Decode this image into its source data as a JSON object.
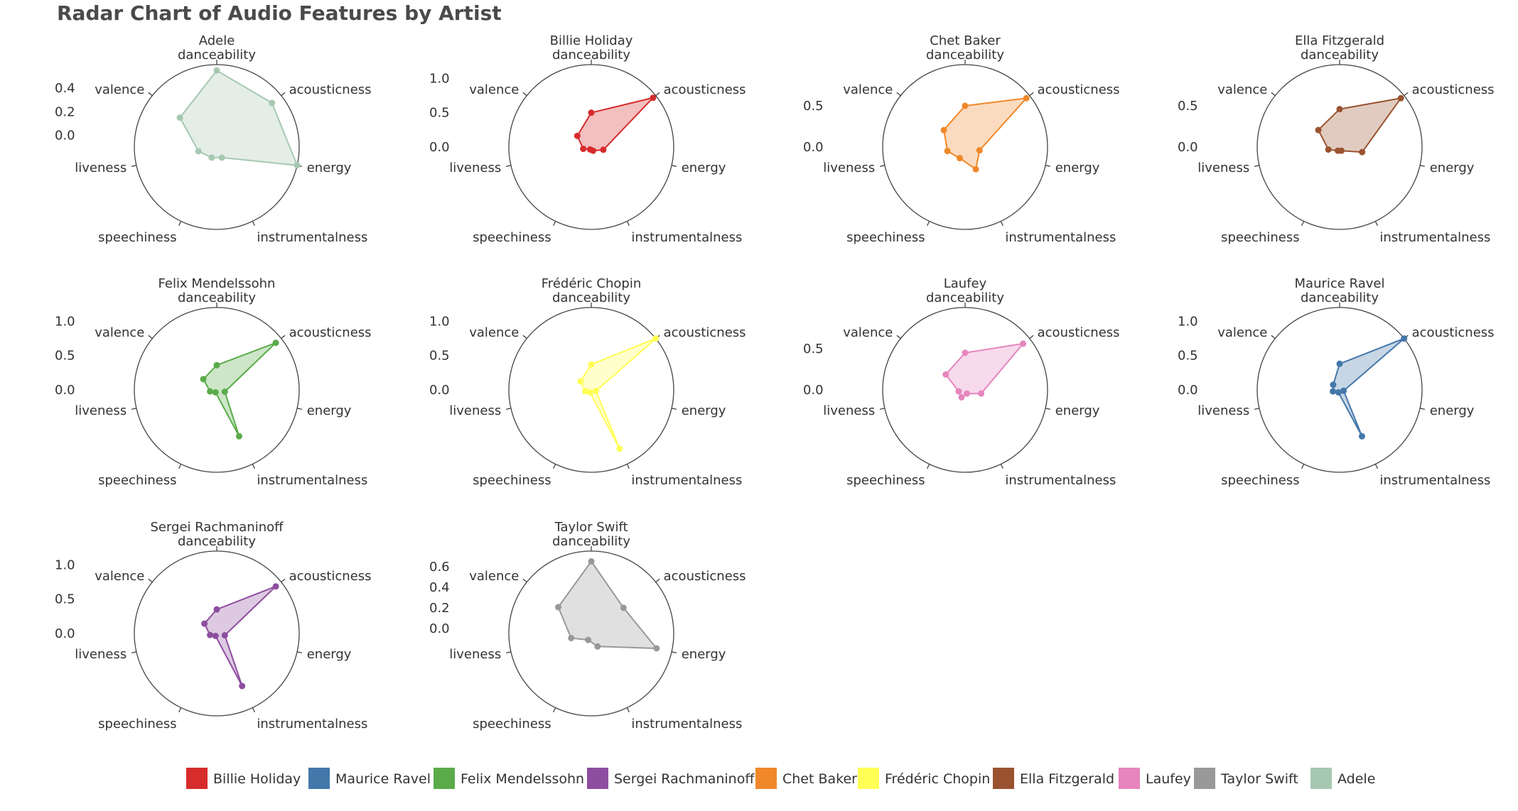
{
  "chart_data": {
    "type": "radar",
    "title": "Radar Chart of Audio Features by Artist",
    "axes": [
      "danceability",
      "acousticness",
      "energy",
      "instrumentalness",
      "speechiness",
      "liveness",
      "valence"
    ],
    "legend_position": "bottom",
    "panels": [
      {
        "name": "Adele",
        "color": "#a6c8b1",
        "rrange": [
          -0.1,
          0.6
        ],
        "ticks": [
          "0.0",
          "0.2",
          "0.4"
        ],
        "tick_values": [
          0.0,
          0.2,
          0.4
        ],
        "values": [
          0.55,
          0.5,
          0.6,
          0.0,
          0.0,
          0.06,
          0.3
        ]
      },
      {
        "name": "Billie Holiday",
        "color": "#d62c2c",
        "rrange": [
          0.0,
          1.2
        ],
        "ticks": [
          "0.0",
          "0.5",
          "1.0"
        ],
        "tick_values": [
          0.0,
          0.5,
          1.0
        ],
        "values": [
          0.5,
          1.15,
          0.18,
          0.06,
          0.04,
          0.12,
          0.26
        ]
      },
      {
        "name": "Chet Baker",
        "color": "#f0882a",
        "rrange": [
          0.0,
          1.0
        ],
        "ticks": [
          "0.0",
          "0.5"
        ],
        "tick_values": [
          0.0,
          0.5
        ],
        "values": [
          0.5,
          0.95,
          0.18,
          0.3,
          0.15,
          0.22,
          0.33
        ]
      },
      {
        "name": "Ella Fitzgerald",
        "color": "#9a5330",
        "rrange": [
          0.0,
          1.0
        ],
        "ticks": [
          "0.0",
          "0.5"
        ],
        "tick_values": [
          0.0,
          0.5
        ],
        "values": [
          0.46,
          0.95,
          0.28,
          0.05,
          0.05,
          0.14,
          0.33
        ]
      },
      {
        "name": "Felix Mendelssohn",
        "color": "#5aab4a",
        "rrange": [
          0.0,
          1.2
        ],
        "ticks": [
          "0.0",
          "0.5",
          "1.0"
        ],
        "tick_values": [
          0.0,
          0.5,
          1.0
        ],
        "values": [
          0.36,
          1.1,
          0.12,
          0.75,
          0.04,
          0.1,
          0.25
        ]
      },
      {
        "name": "Frédéric Chopin",
        "color": "#ffff55",
        "rrange": [
          0.0,
          1.2
        ],
        "ticks": [
          "0.0",
          "0.5",
          "1.0"
        ],
        "tick_values": [
          0.0,
          0.5,
          1.0
        ],
        "values": [
          0.37,
          1.2,
          0.07,
          0.95,
          0.04,
          0.09,
          0.2
        ]
      },
      {
        "name": "Laufey",
        "color": "#e685be",
        "rrange": [
          0.0,
          1.0
        ],
        "ticks": [
          "0.0",
          "0.5"
        ],
        "tick_values": [
          0.0,
          0.5
        ],
        "values": [
          0.45,
          0.9,
          0.2,
          0.05,
          0.1,
          0.08,
          0.3
        ]
      },
      {
        "name": "Maurice Ravel",
        "color": "#4477aa",
        "rrange": [
          0.0,
          1.2
        ],
        "ticks": [
          "0.0",
          "0.5",
          "1.0"
        ],
        "tick_values": [
          0.0,
          0.5,
          1.0
        ],
        "values": [
          0.38,
          1.2,
          0.06,
          0.75,
          0.04,
          0.1,
          0.12
        ]
      },
      {
        "name": "Sergei Rachmaninoff",
        "color": "#8e4ea0",
        "rrange": [
          0.0,
          1.2
        ],
        "ticks": [
          "0.0",
          "0.5",
          "1.0"
        ],
        "tick_values": [
          0.0,
          0.5,
          1.0
        ],
        "values": [
          0.35,
          1.1,
          0.12,
          0.85,
          0.04,
          0.1,
          0.23
        ]
      },
      {
        "name": "Taylor Swift",
        "color": "#999999",
        "rrange": [
          -0.05,
          0.75
        ],
        "ticks": [
          "0.0",
          "0.2",
          "0.4",
          "0.6"
        ],
        "tick_values": [
          0.0,
          0.2,
          0.4,
          0.6
        ],
        "values": [
          0.65,
          0.35,
          0.6,
          0.09,
          0.02,
          0.15,
          0.36
        ]
      }
    ],
    "legend": [
      {
        "label": "Billie Holiday",
        "color": "#d62c2c"
      },
      {
        "label": "Maurice Ravel",
        "color": "#4477aa"
      },
      {
        "label": "Felix Mendelssohn",
        "color": "#5aab4a"
      },
      {
        "label": "Sergei Rachmaninoff",
        "color": "#8e4ea0"
      },
      {
        "label": "Chet Baker",
        "color": "#f0882a"
      },
      {
        "label": "Frédéric Chopin",
        "color": "#ffff55"
      },
      {
        "label": "Ella Fitzgerald",
        "color": "#9a5330"
      },
      {
        "label": "Laufey",
        "color": "#e685be"
      },
      {
        "label": "Taylor Swift",
        "color": "#999999"
      },
      {
        "label": "Adele",
        "color": "#a6c8b1"
      }
    ]
  }
}
